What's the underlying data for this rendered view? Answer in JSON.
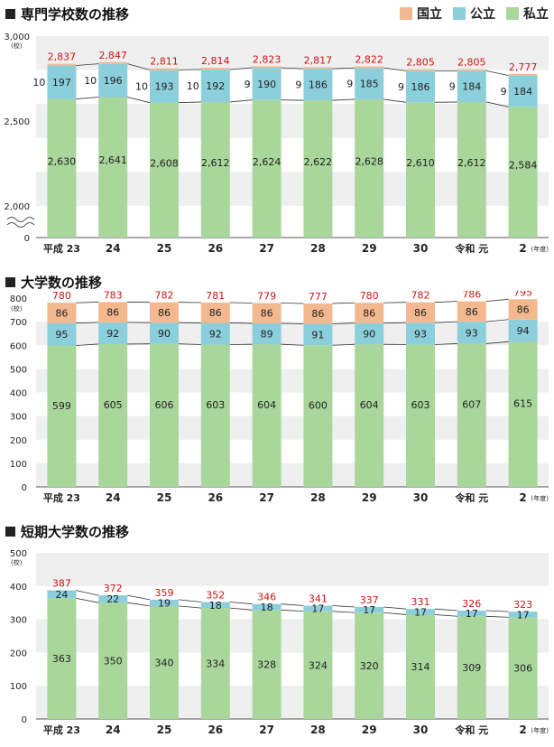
{
  "legend": {
    "national": "国立",
    "public": "公立",
    "private": "私立"
  },
  "colors": {
    "national": "#f4b88f",
    "public": "#8ccfdc",
    "private": "#a9d69b",
    "total": "#cc1515",
    "band": "#efefef"
  },
  "x_labels": [
    "平成 23",
    "24",
    "25",
    "26",
    "27",
    "28",
    "29",
    "30",
    "令和 元",
    "2"
  ],
  "year_unit": "(年度)",
  "count_unit": "(校)",
  "chart_data": [
    {
      "type": "bar",
      "title": "専門学校数の推移",
      "categories": [
        "平成 23",
        "24",
        "25",
        "26",
        "27",
        "28",
        "29",
        "30",
        "令和 元",
        "2"
      ],
      "ytick_labels": [
        "3,000",
        "2,500",
        "2,000",
        "0"
      ],
      "ylim": [
        2000,
        3000
      ],
      "axis_break": true,
      "series": [
        {
          "name": "私立",
          "values": [
            2630,
            2641,
            2608,
            2612,
            2624,
            2622,
            2628,
            2610,
            2612,
            2584
          ],
          "labels": [
            "2,630",
            "2,641",
            "2,608",
            "2,612",
            "2,624",
            "2,622",
            "2,628",
            "2,610",
            "2,612",
            "2,584"
          ]
        },
        {
          "name": "公立",
          "values": [
            197,
            196,
            193,
            192,
            190,
            186,
            185,
            186,
            184,
            184
          ],
          "labels": [
            "197",
            "196",
            "193",
            "192",
            "190",
            "186",
            "185",
            "186",
            "184",
            "184"
          ]
        },
        {
          "name": "国立",
          "values": [
            10,
            10,
            10,
            10,
            9,
            9,
            9,
            9,
            9,
            9
          ],
          "labels": [
            "10",
            "10",
            "10",
            "10",
            "9",
            "9",
            "9",
            "9",
            "9",
            "9"
          ]
        }
      ],
      "totals": [
        2837,
        2847,
        2811,
        2814,
        2823,
        2817,
        2822,
        2805,
        2805,
        2777
      ],
      "total_labels": [
        "2,837",
        "2,847",
        "2,811",
        "2,814",
        "2,823",
        "2,817",
        "2,822",
        "2,805",
        "2,805",
        "2,777"
      ]
    },
    {
      "type": "bar",
      "title": "大学数の推移",
      "categories": [
        "平成 23",
        "24",
        "25",
        "26",
        "27",
        "28",
        "29",
        "30",
        "令和 元",
        "2"
      ],
      "ytick_labels": [
        "800",
        "700",
        "600",
        "500",
        "400",
        "300",
        "200",
        "100",
        "0"
      ],
      "ylim": [
        0,
        800
      ],
      "series": [
        {
          "name": "私立",
          "values": [
            599,
            605,
            606,
            603,
            604,
            600,
            604,
            603,
            607,
            615
          ],
          "labels": [
            "599",
            "605",
            "606",
            "603",
            "604",
            "600",
            "604",
            "603",
            "607",
            "615"
          ]
        },
        {
          "name": "公立",
          "values": [
            95,
            92,
            90,
            92,
            89,
            91,
            90,
            93,
            93,
            94
          ],
          "labels": [
            "95",
            "92",
            "90",
            "92",
            "89",
            "91",
            "90",
            "93",
            "93",
            "94"
          ]
        },
        {
          "name": "国立",
          "values": [
            86,
            86,
            86,
            86,
            86,
            86,
            86,
            86,
            86,
            86
          ],
          "labels": [
            "86",
            "86",
            "86",
            "86",
            "86",
            "86",
            "86",
            "86",
            "86",
            "86"
          ]
        }
      ],
      "totals": [
        780,
        783,
        782,
        781,
        779,
        777,
        780,
        782,
        786,
        795
      ],
      "total_labels": [
        "780",
        "783",
        "782",
        "781",
        "779",
        "777",
        "780",
        "782",
        "786",
        "795"
      ]
    },
    {
      "type": "bar",
      "title": "短期大学数の推移",
      "categories": [
        "平成 23",
        "24",
        "25",
        "26",
        "27",
        "28",
        "29",
        "30",
        "令和 元",
        "2"
      ],
      "ytick_labels": [
        "500",
        "400",
        "300",
        "200",
        "100",
        "0"
      ],
      "ylim": [
        0,
        500
      ],
      "series": [
        {
          "name": "私立",
          "values": [
            363,
            350,
            340,
            334,
            328,
            324,
            320,
            314,
            309,
            306
          ],
          "labels": [
            "363",
            "350",
            "340",
            "334",
            "328",
            "324",
            "320",
            "314",
            "309",
            "306"
          ]
        },
        {
          "name": "公立",
          "values": [
            24,
            22,
            19,
            18,
            18,
            17,
            17,
            17,
            17,
            17
          ],
          "labels": [
            "24",
            "22",
            "19",
            "18",
            "18",
            "17",
            "17",
            "17",
            "17",
            "17"
          ]
        }
      ],
      "totals": [
        387,
        372,
        359,
        352,
        346,
        341,
        337,
        331,
        326,
        323
      ],
      "total_labels": [
        "387",
        "372",
        "359",
        "352",
        "346",
        "341",
        "337",
        "331",
        "326",
        "323"
      ]
    }
  ]
}
